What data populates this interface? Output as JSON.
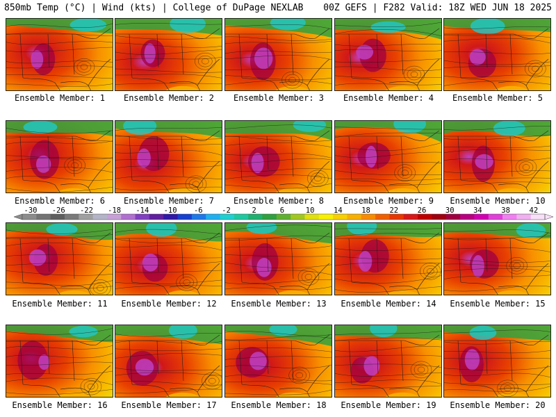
{
  "header": {
    "left_text": "850mb Temp (°C) | Wind (kts) | College of DuPage NEXLAB",
    "right_text": "00Z GEFS | F282 Valid: 18Z WED JUN 18 2025"
  },
  "caption_prefix": "Ensemble Member:",
  "members": [
    {
      "label": "Ensemble Member: 1"
    },
    {
      "label": "Ensemble Member: 2"
    },
    {
      "label": "Ensemble Member: 3"
    },
    {
      "label": "Ensemble Member: 4"
    },
    {
      "label": "Ensemble Member: 5"
    },
    {
      "label": "Ensemble Member: 6"
    },
    {
      "label": "Ensemble Member: 7"
    },
    {
      "label": "Ensemble Member: 8"
    },
    {
      "label": "Ensemble Member: 9"
    },
    {
      "label": "Ensemble Member: 10"
    },
    {
      "label": "Ensemble Member: 11"
    },
    {
      "label": "Ensemble Member: 12"
    },
    {
      "label": "Ensemble Member: 13"
    },
    {
      "label": "Ensemble Member: 14"
    },
    {
      "label": "Ensemble Member: 15"
    },
    {
      "label": "Ensemble Member: 16"
    },
    {
      "label": "Ensemble Member: 17"
    },
    {
      "label": "Ensemble Member: 18"
    },
    {
      "label": "Ensemble Member: 19"
    },
    {
      "label": "Ensemble Member: 20"
    }
  ],
  "colorbar": {
    "tick_labels": [
      "-30",
      "-26",
      "-22",
      "-18",
      "-14",
      "-10",
      "-6",
      "-2",
      "2",
      "6",
      "10",
      "14",
      "18",
      "22",
      "26",
      "30",
      "34",
      "38",
      "42"
    ],
    "colors": [
      "#8c8c8c",
      "#747474",
      "#5e5e5e",
      "#7a7a7a",
      "#a0a0a0",
      "#b4b4c8",
      "#c8a0d8",
      "#b070d0",
      "#8040c0",
      "#6020a0",
      "#3018a8",
      "#1840d0",
      "#1e78e8",
      "#20b0f0",
      "#20d0d0",
      "#20c8a0",
      "#20b070",
      "#30a040",
      "#60b030",
      "#a0c820",
      "#e0e010",
      "#f8f000",
      "#f8d000",
      "#f8b000",
      "#f88c00",
      "#f06000",
      "#e83800",
      "#d81818",
      "#c00000",
      "#a00010",
      "#a00040",
      "#b80080",
      "#d000b0",
      "#e040d8",
      "#f080f0",
      "#f0b0f0",
      "#f8e0f8"
    ]
  }
}
